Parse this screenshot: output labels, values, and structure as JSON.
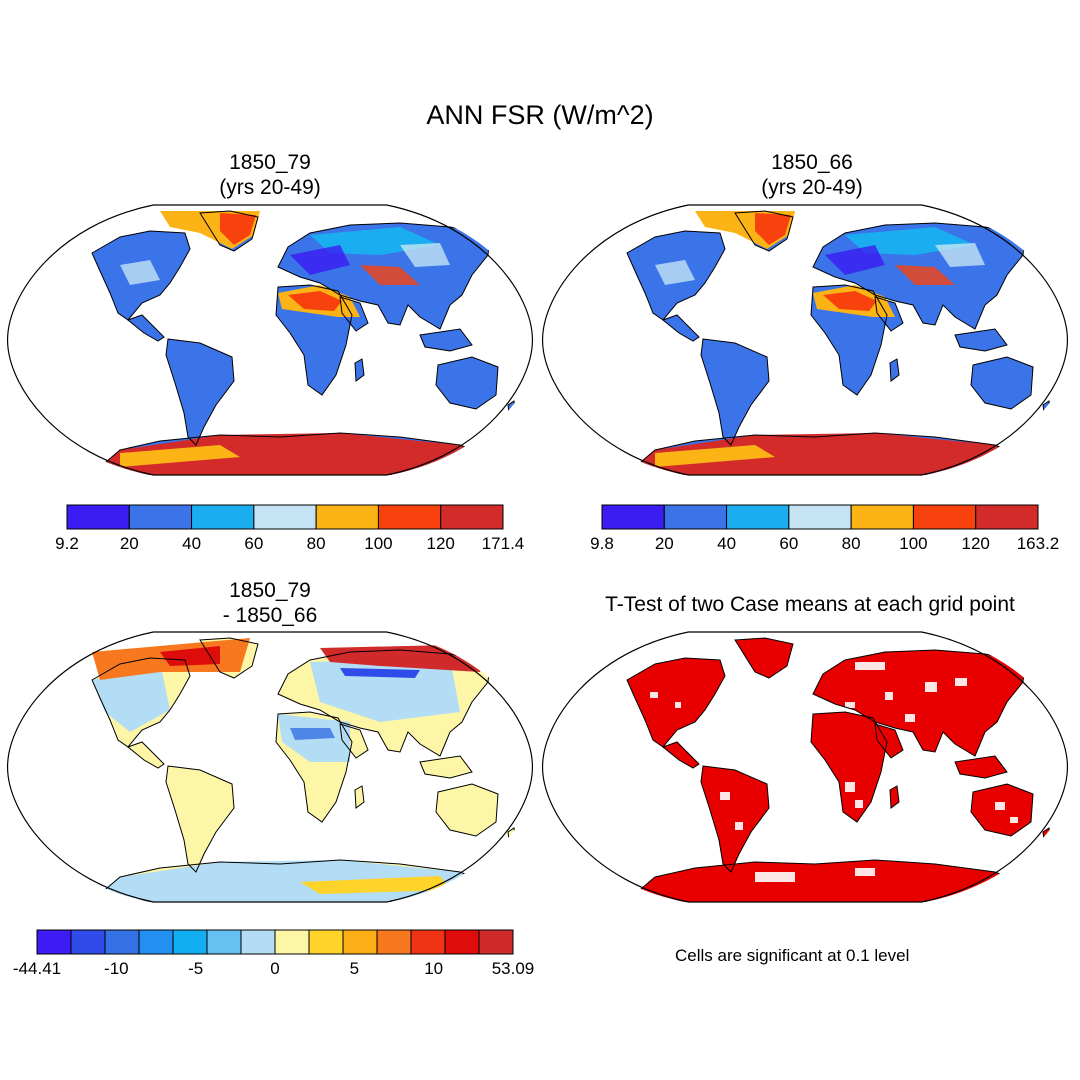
{
  "title": "ANN FSR (W/m^2)",
  "panels": [
    {
      "line1": "1850_79",
      "line2": "(yrs 20-49)"
    },
    {
      "line1": "1850_66",
      "line2": "(yrs 20-49)"
    },
    {
      "line1": "1850_79",
      "line2": "- 1850_66"
    },
    {
      "line1": "T-Test of two Case means at each grid point",
      "line2": ""
    }
  ],
  "colorbars": {
    "cb1": {
      "colors": [
        "#3b1cf2",
        "#3b74e8",
        "#1aaef0",
        "#c4e4f4",
        "#fbb316",
        "#f8420e",
        "#d32a2a"
      ],
      "labels": [
        "9.2",
        "20",
        "40",
        "60",
        "80",
        "100",
        "120",
        "171.4"
      ]
    },
    "cb2": {
      "colors": [
        "#3b1cf2",
        "#3b74e8",
        "#1aaef0",
        "#c4e4f4",
        "#fbb316",
        "#f8420e",
        "#d32a2a"
      ],
      "labels": [
        "9.8",
        "20",
        "40",
        "60",
        "80",
        "100",
        "120",
        "163.2"
      ]
    },
    "cb3": {
      "colors": [
        "#3e1af4",
        "#2f4cea",
        "#3471e4",
        "#238ff0",
        "#12aef2",
        "#67c0f2",
        "#b3ddf5",
        "#fdf6a6",
        "#fed42b",
        "#fbae16",
        "#f7781e",
        "#ef3416",
        "#df0c0c",
        "#d12a2a"
      ],
      "labels": [
        "-44.41",
        "-10",
        "-5",
        "0",
        "5",
        "10",
        "53.09"
      ]
    }
  },
  "note": "Cells are significant at 0.1 level",
  "fill_colors": {
    "ocean": "#ffffff",
    "coastline": "#000000",
    "ttest_fill": "#e80000"
  }
}
